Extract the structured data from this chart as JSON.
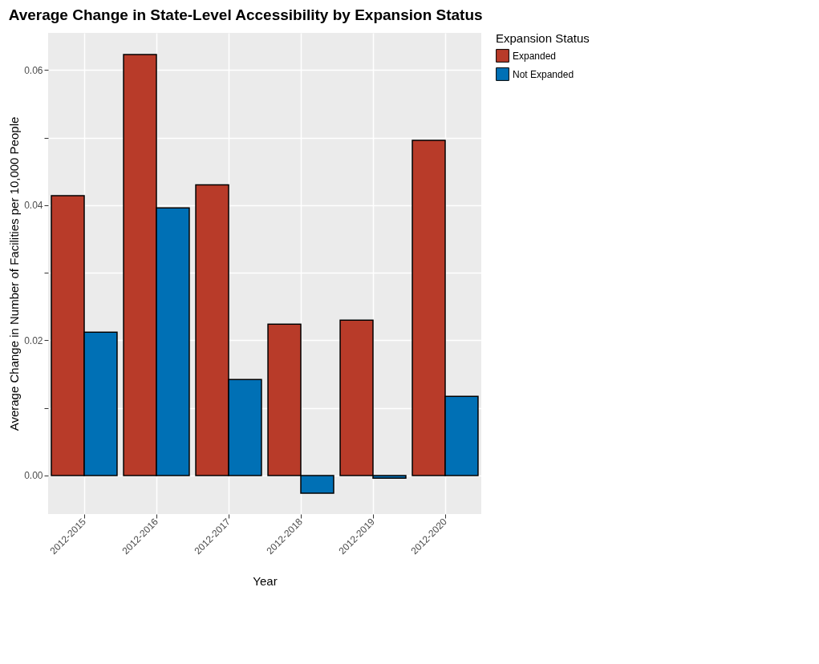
{
  "chart_data": {
    "type": "bar",
    "title": "Average Change in State-Level Accessibility by Expansion Status",
    "xlabel": "Year",
    "ylabel": "Average Change in Number of Facilities per 10,000 People",
    "legend_title": "Expansion Status",
    "categories": [
      "2012-2015",
      "2012-2016",
      "2012-2017",
      "2012-2018",
      "2012-2019",
      "2012-2020"
    ],
    "series": [
      {
        "name": "Expanded",
        "color": "#b83b29",
        "values": [
          0.0414,
          0.0623,
          0.043,
          0.0224,
          0.023,
          0.0496
        ]
      },
      {
        "name": "Not Expanded",
        "color": "#0070b5",
        "values": [
          0.0212,
          0.0396,
          0.0142,
          -0.0026,
          -0.0004,
          0.0117
        ]
      }
    ],
    "ylim": [
      -0.0057,
      0.0655
    ],
    "yticks": [
      {
        "value": 0.0,
        "label": "0.00"
      },
      {
        "value": 0.01,
        "label": null
      },
      {
        "value": 0.02,
        "label": "0.02"
      },
      {
        "value": 0.03,
        "label": null
      },
      {
        "value": 0.04,
        "label": "0.04"
      },
      {
        "value": 0.05,
        "label": null
      },
      {
        "value": 0.06,
        "label": "0.06"
      }
    ],
    "grid": true,
    "legend": "right"
  }
}
